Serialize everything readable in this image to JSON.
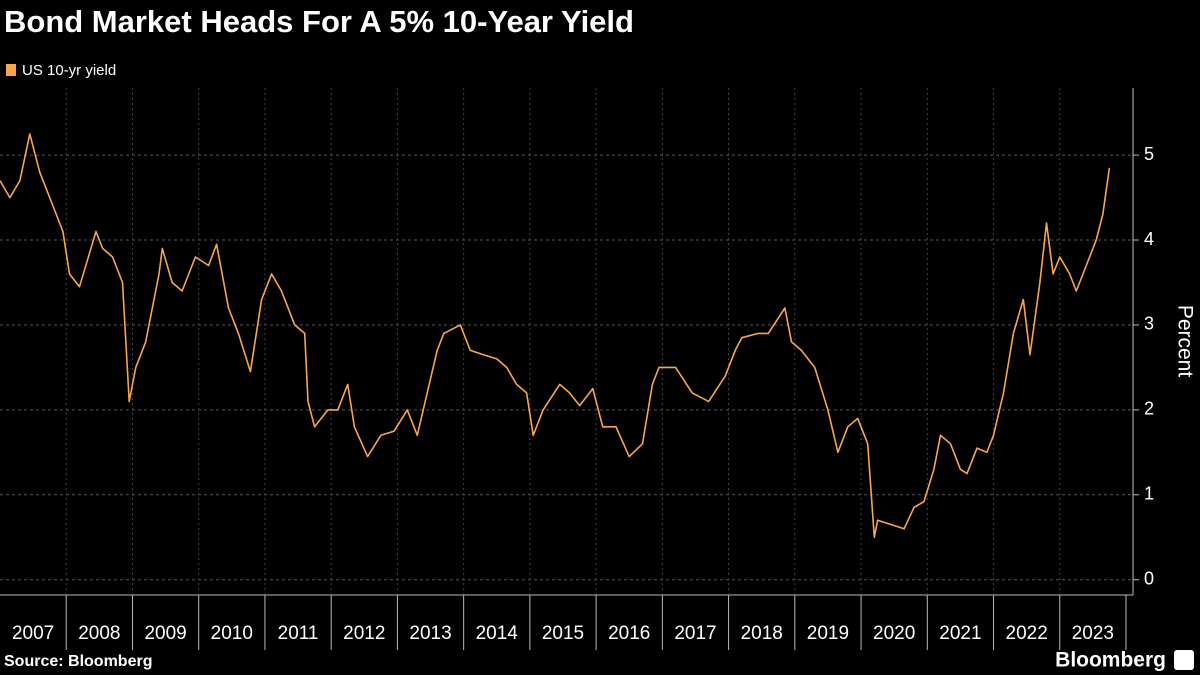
{
  "chart_data": {
    "type": "line",
    "title": "Bond Market Heads For A 5% 10-Year Yield",
    "y_label": "Percent",
    "source": "Source: Bloomberg",
    "brand": "Bloomberg",
    "x": [
      2007.0,
      2007.15,
      2007.3,
      2007.45,
      2007.6,
      2007.8,
      2007.95,
      2008.05,
      2008.2,
      2008.45,
      2008.55,
      2008.7,
      2008.85,
      2008.95,
      2009.05,
      2009.2,
      2009.4,
      2009.45,
      2009.6,
      2009.75,
      2009.95,
      2010.15,
      2010.27,
      2010.45,
      2010.6,
      2010.78,
      2010.95,
      2011.1,
      2011.25,
      2011.45,
      2011.6,
      2011.65,
      2011.75,
      2011.95,
      2012.1,
      2012.25,
      2012.35,
      2012.55,
      2012.75,
      2012.95,
      2013.15,
      2013.3,
      2013.45,
      2013.6,
      2013.7,
      2013.95,
      2014.1,
      2014.3,
      2014.5,
      2014.65,
      2014.8,
      2014.95,
      2015.05,
      2015.2,
      2015.45,
      2015.6,
      2015.75,
      2015.95,
      2016.1,
      2016.3,
      2016.5,
      2016.7,
      2016.85,
      2016.95,
      2017.2,
      2017.45,
      2017.7,
      2017.95,
      2018.1,
      2018.2,
      2018.45,
      2018.6,
      2018.85,
      2018.95,
      2019.1,
      2019.3,
      2019.5,
      2019.65,
      2019.8,
      2019.95,
      2020.1,
      2020.2,
      2020.25,
      2020.45,
      2020.65,
      2020.8,
      2020.95,
      2021.1,
      2021.2,
      2021.35,
      2021.5,
      2021.6,
      2021.75,
      2021.9,
      2022.0,
      2022.15,
      2022.3,
      2022.45,
      2022.55,
      2022.7,
      2022.8,
      2022.9,
      2023.0,
      2023.15,
      2023.25,
      2023.4,
      2023.55,
      2023.65,
      2023.75
    ],
    "series": [
      {
        "name": "US 10-yr yield",
        "color": "#f8a64c",
        "values": [
          4.7,
          4.5,
          4.7,
          5.25,
          4.8,
          4.4,
          4.1,
          3.6,
          3.45,
          4.1,
          3.9,
          3.8,
          3.5,
          2.1,
          2.5,
          2.8,
          3.6,
          3.9,
          3.5,
          3.4,
          3.8,
          3.7,
          3.95,
          3.2,
          2.9,
          2.45,
          3.3,
          3.6,
          3.4,
          3.0,
          2.9,
          2.1,
          1.8,
          2.0,
          2.0,
          2.3,
          1.8,
          1.45,
          1.7,
          1.75,
          2.0,
          1.7,
          2.2,
          2.7,
          2.9,
          3.0,
          2.7,
          2.65,
          2.6,
          2.5,
          2.3,
          2.2,
          1.7,
          2.0,
          2.3,
          2.2,
          2.05,
          2.25,
          1.8,
          1.8,
          1.45,
          1.6,
          2.3,
          2.5,
          2.5,
          2.2,
          2.1,
          2.4,
          2.7,
          2.85,
          2.9,
          2.9,
          3.2,
          2.8,
          2.7,
          2.5,
          2.0,
          1.5,
          1.8,
          1.9,
          1.6,
          0.5,
          0.7,
          0.65,
          0.6,
          0.85,
          0.92,
          1.3,
          1.7,
          1.6,
          1.3,
          1.25,
          1.55,
          1.5,
          1.7,
          2.2,
          2.9,
          3.3,
          2.65,
          3.5,
          4.2,
          3.6,
          3.8,
          3.6,
          3.4,
          3.7,
          4.0,
          4.3,
          4.85
        ]
      }
    ],
    "xlim": [
      2007,
      2024
    ],
    "xticks": [
      2007,
      2008,
      2009,
      2010,
      2011,
      2012,
      2013,
      2014,
      2015,
      2016,
      2017,
      2018,
      2019,
      2020,
      2021,
      2022,
      2023
    ],
    "ylim": [
      -0.18,
      5.79
    ],
    "yticks": [
      0,
      1,
      2,
      3,
      4,
      5
    ],
    "grid": true
  }
}
